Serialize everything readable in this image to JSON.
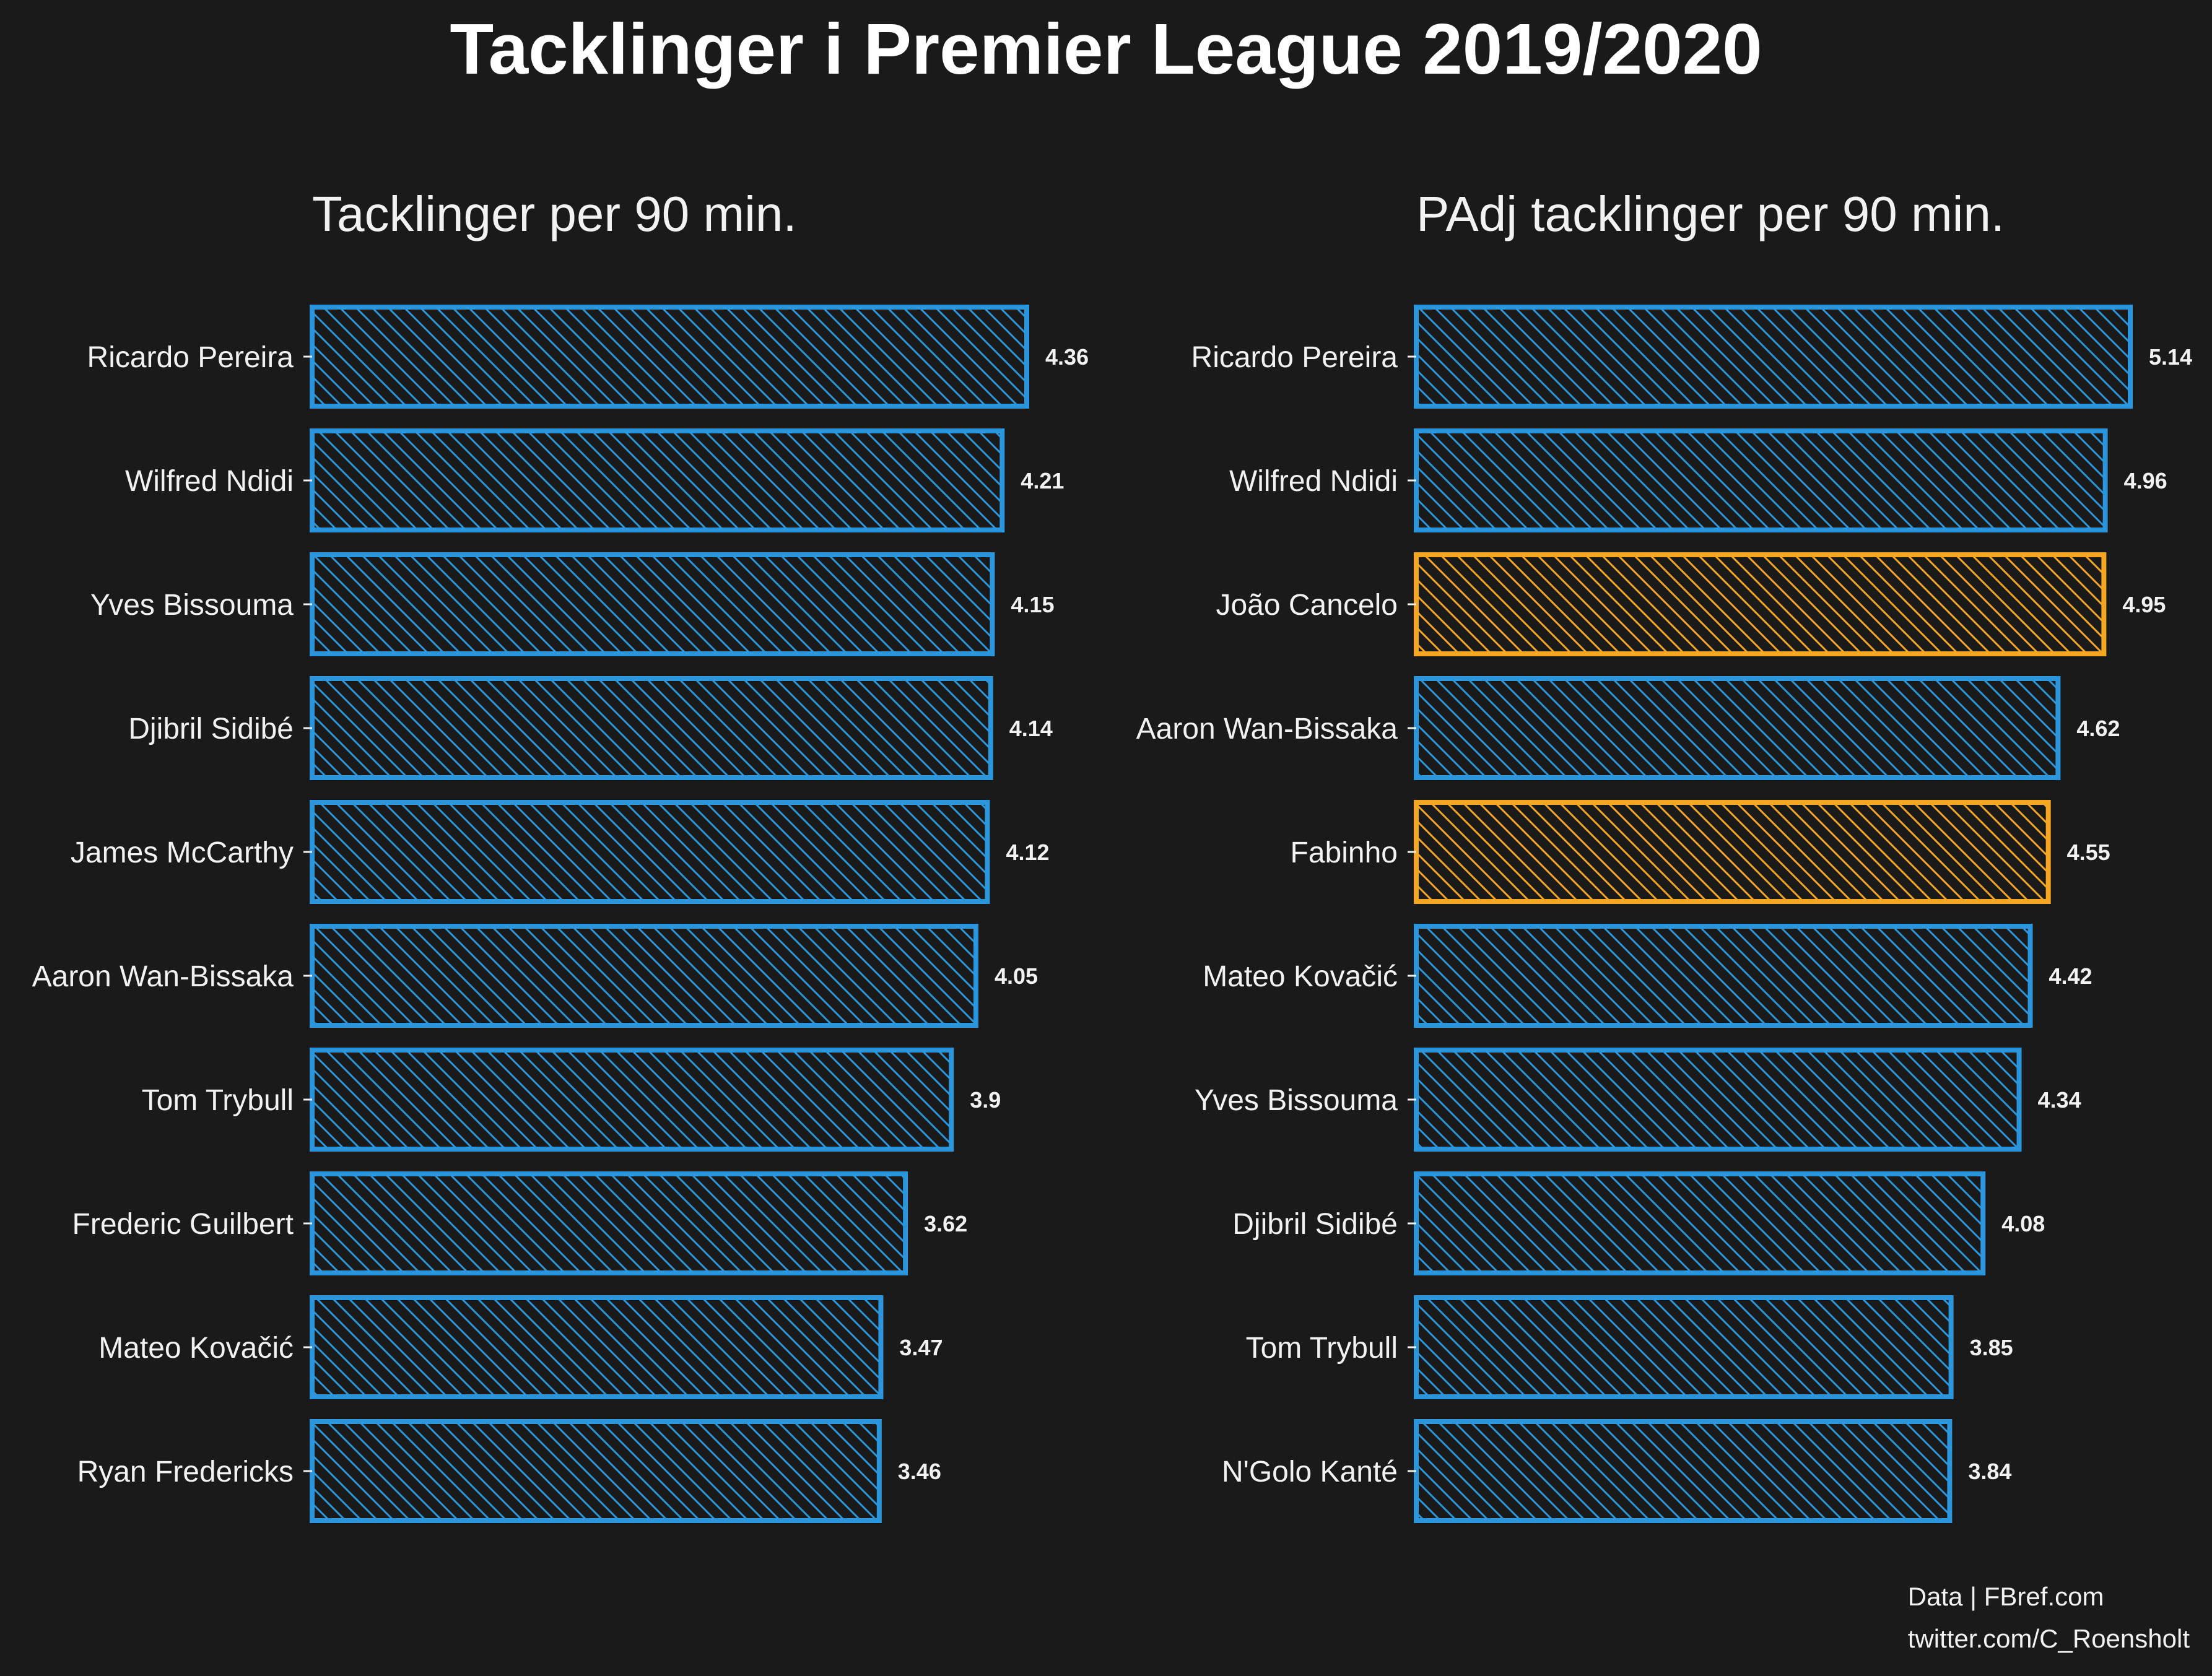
{
  "title": "Tacklinger i Premier League 2019/2020",
  "footer": {
    "line1": "Data | FBref.com",
    "line2": "twitter.com/C_Roensholt"
  },
  "colors": {
    "background": "#1a1a1a",
    "blue": "#2b96db",
    "orange": "#f5a623",
    "text": "#f2f2f2"
  },
  "chart_data": [
    {
      "type": "bar",
      "orientation": "horizontal",
      "title": "Tacklinger per 90 min.",
      "categories": [
        "Ricardo Pereira",
        "Wilfred Ndidi",
        "Yves Bissouma",
        "Djibril Sidibé",
        "James McCarthy",
        "Aaron Wan-Bissaka",
        "Tom Trybull",
        "Frederic Guilbert",
        "Mateo Kovačić",
        "Ryan Fredericks"
      ],
      "values": [
        4.36,
        4.21,
        4.15,
        4.14,
        4.12,
        4.05,
        3.9,
        3.62,
        3.47,
        3.46
      ],
      "value_labels": [
        "4.36",
        "4.21",
        "4.15",
        "4.14",
        "4.12",
        "4.05",
        "3.9",
        "3.62",
        "3.47",
        "3.46"
      ],
      "colors": [
        "blue",
        "blue",
        "blue",
        "blue",
        "blue",
        "blue",
        "blue",
        "blue",
        "blue",
        "blue"
      ],
      "xlim": [
        0,
        4.36
      ],
      "grid": false
    },
    {
      "type": "bar",
      "orientation": "horizontal",
      "title": "PAdj tacklinger per 90 min.",
      "categories": [
        "Ricardo Pereira",
        "Wilfred Ndidi",
        "João Cancelo",
        "Aaron Wan-Bissaka",
        "Fabinho",
        "Mateo Kovačić",
        "Yves Bissouma",
        "Djibril Sidibé",
        "Tom Trybull",
        "N'Golo Kanté"
      ],
      "values": [
        5.14,
        4.96,
        4.95,
        4.62,
        4.55,
        4.42,
        4.34,
        4.08,
        3.85,
        3.84
      ],
      "value_labels": [
        "5.14",
        "4.96",
        "4.95",
        "4.62",
        "4.55",
        "4.42",
        "4.34",
        "4.08",
        "3.85",
        "3.84"
      ],
      "colors": [
        "blue",
        "blue",
        "orange",
        "blue",
        "orange",
        "blue",
        "blue",
        "blue",
        "blue",
        "blue"
      ],
      "xlim": [
        0,
        5.14
      ],
      "grid": false
    }
  ]
}
